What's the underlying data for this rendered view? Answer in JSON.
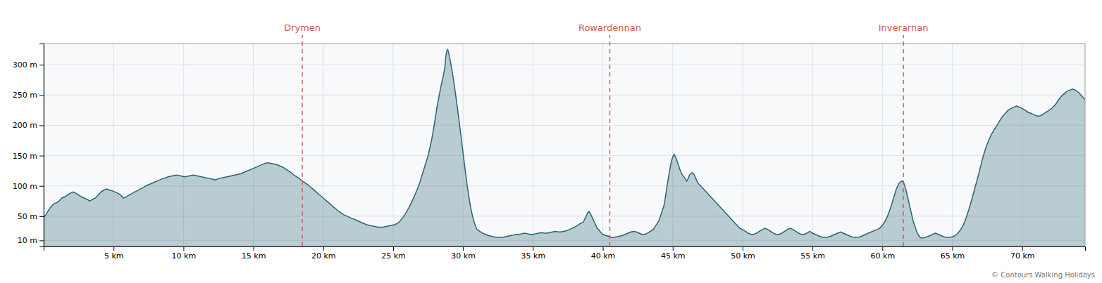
{
  "chart_data": {
    "type": "area",
    "color": "#2b6575",
    "grid": true,
    "xlim": [
      0,
      74.5
    ],
    "xticks": [
      {
        "value": 5,
        "label": "5 km"
      },
      {
        "value": 10,
        "label": "10 km"
      },
      {
        "value": 15,
        "label": "15 km"
      },
      {
        "value": 20,
        "label": "20 km"
      },
      {
        "value": 25,
        "label": "25 km"
      },
      {
        "value": 30,
        "label": "30 km"
      },
      {
        "value": 35,
        "label": "35 km"
      },
      {
        "value": 40,
        "label": "40 km"
      },
      {
        "value": 45,
        "label": "45 km"
      },
      {
        "value": 50,
        "label": "50 km"
      },
      {
        "value": 55,
        "label": "55 km"
      },
      {
        "value": 60,
        "label": "60 km"
      },
      {
        "value": 65,
        "label": "65 km"
      },
      {
        "value": 70,
        "label": "70 km"
      }
    ],
    "ylim": [
      0,
      335
    ],
    "yticks": [
      {
        "value": 10,
        "label": "10 m"
      },
      {
        "value": 50,
        "label": "50 m"
      },
      {
        "value": 100,
        "label": "100 m"
      },
      {
        "value": 150,
        "label": "150 m"
      },
      {
        "value": 200,
        "label": "200 m"
      },
      {
        "value": 250,
        "label": "250 m"
      },
      {
        "value": 300,
        "label": "300 m"
      }
    ],
    "annotations": [
      {
        "text": "Drymen",
        "x": 18.5,
        "color": "#d05555"
      },
      {
        "text": "Rowardennan",
        "x": 40.5,
        "color": "#d05555"
      },
      {
        "text": "Inverarnan",
        "x": 61.5,
        "color": "#d05555"
      },
      {
        "text": "© Contours Walking Holidays"
      }
    ],
    "x": [
      0.0,
      0.15,
      0.3,
      0.5,
      0.7,
      0.9,
      1.1,
      1.3,
      1.5,
      1.7,
      1.9,
      2.1,
      2.3,
      2.5,
      2.7,
      2.9,
      3.1,
      3.3,
      3.5,
      3.7,
      3.9,
      4.1,
      4.3,
      4.5,
      4.7,
      4.9,
      5.1,
      5.3,
      5.5,
      5.7,
      5.9,
      6.1,
      6.3,
      6.5,
      6.7,
      6.9,
      7.1,
      7.3,
      7.5,
      7.7,
      7.9,
      8.1,
      8.3,
      8.5,
      8.7,
      8.9,
      9.1,
      9.3,
      9.5,
      9.7,
      9.9,
      10.1,
      10.3,
      10.5,
      10.7,
      10.9,
      11.1,
      11.3,
      11.5,
      11.7,
      11.9,
      12.1,
      12.3,
      12.5,
      12.7,
      12.9,
      13.1,
      13.3,
      13.5,
      13.7,
      13.9,
      14.1,
      14.3,
      14.5,
      14.7,
      14.9,
      15.1,
      15.3,
      15.5,
      15.7,
      15.9,
      16.1,
      16.3,
      16.5,
      16.7,
      16.9,
      17.1,
      17.3,
      17.5,
      17.7,
      17.9,
      18.1,
      18.3,
      18.5,
      18.7,
      18.9,
      19.1,
      19.3,
      19.5,
      19.7,
      19.9,
      20.1,
      20.3,
      20.5,
      20.7,
      20.9,
      21.1,
      21.3,
      21.5,
      21.7,
      21.9,
      22.1,
      22.3,
      22.5,
      22.7,
      22.9,
      23.1,
      23.3,
      23.5,
      23.7,
      23.9,
      24.1,
      24.3,
      24.5,
      24.7,
      24.9,
      25.1,
      25.3,
      25.5,
      25.7,
      25.9,
      26.1,
      26.3,
      26.5,
      26.7,
      26.9,
      27.1,
      27.3,
      27.5,
      27.6,
      27.7,
      27.8,
      27.9,
      28.0,
      28.1,
      28.2,
      28.3,
      28.4,
      28.5,
      28.6,
      28.7,
      28.75,
      28.8,
      28.85,
      28.9,
      28.95,
      29.0,
      29.1,
      29.2,
      29.3,
      29.4,
      29.5,
      29.6,
      29.7,
      29.8,
      29.9,
      30.0,
      30.1,
      30.2,
      30.3,
      30.4,
      30.5,
      30.6,
      30.7,
      30.8,
      30.9,
      31.0,
      31.2,
      31.4,
      31.6,
      31.8,
      32.0,
      32.2,
      32.4,
      32.6,
      32.8,
      33.0,
      33.2,
      33.4,
      33.6,
      33.8,
      34.0,
      34.2,
      34.4,
      34.6,
      34.8,
      35.0,
      35.2,
      35.4,
      35.6,
      35.8,
      36.0,
      36.2,
      36.4,
      36.6,
      36.8,
      37.0,
      37.2,
      37.4,
      37.6,
      37.8,
      38.0,
      38.2,
      38.4,
      38.6,
      38.7,
      38.8,
      38.9,
      39.0,
      39.1,
      39.2,
      39.3,
      39.4,
      39.5,
      39.6,
      39.7,
      39.8,
      39.9,
      40.0,
      40.2,
      40.4,
      40.5,
      40.6,
      40.8,
      41.0,
      41.2,
      41.4,
      41.6,
      41.8,
      42.0,
      42.2,
      42.4,
      42.6,
      42.8,
      43.0,
      43.2,
      43.4,
      43.6,
      43.8,
      44.0,
      44.2,
      44.4,
      44.5,
      44.6,
      44.7,
      44.8,
      44.9,
      45.0,
      45.1,
      45.2,
      45.3,
      45.4,
      45.5,
      45.6,
      45.7,
      45.8,
      45.9,
      46.0,
      46.1,
      46.2,
      46.3,
      46.4,
      46.5,
      46.6,
      46.7,
      46.8,
      47.0,
      47.2,
      47.4,
      47.6,
      47.8,
      48.0,
      48.2,
      48.4,
      48.6,
      48.8,
      49.0,
      49.2,
      49.4,
      49.6,
      49.8,
      50.0,
      50.2,
      50.4,
      50.6,
      50.8,
      51.0,
      51.2,
      51.4,
      51.6,
      51.8,
      52.0,
      52.2,
      52.4,
      52.6,
      52.8,
      53.0,
      53.2,
      53.4,
      53.6,
      53.8,
      54.0,
      54.2,
      54.4,
      54.6,
      54.8,
      55.0,
      55.2,
      55.4,
      55.6,
      55.8,
      56.0,
      56.2,
      56.4,
      56.6,
      56.8,
      57.0,
      57.2,
      57.4,
      57.6,
      57.8,
      58.0,
      58.2,
      58.4,
      58.6,
      58.8,
      59.0,
      59.2,
      59.4,
      59.6,
      59.8,
      60.0,
      60.2,
      60.4,
      60.6,
      60.8,
      61.0,
      61.2,
      61.4,
      61.5,
      61.6,
      61.7,
      61.8,
      61.9,
      62.0,
      62.1,
      62.2,
      62.3,
      62.4,
      62.5,
      62.6,
      62.7,
      62.8,
      62.9,
      63.0,
      63.2,
      63.4,
      63.6,
      63.8,
      64.0,
      64.2,
      64.4,
      64.6,
      64.8,
      65.0,
      65.2,
      65.4,
      65.6,
      65.8,
      66.0,
      66.2,
      66.4,
      66.6,
      66.8,
      67.0,
      67.2,
      67.4,
      67.6,
      67.8,
      68.0,
      68.2,
      68.4,
      68.6,
      68.8,
      69.0,
      69.2,
      69.4,
      69.6,
      69.8,
      70.0,
      70.2,
      70.4,
      70.6,
      70.8,
      71.0,
      71.2,
      71.4,
      71.6,
      71.8,
      72.0,
      72.2,
      72.4,
      72.6,
      72.8,
      73.0,
      73.2,
      73.4,
      73.6,
      73.8,
      74.0,
      74.2,
      74.4,
      74.5
    ],
    "values": [
      48,
      52,
      58,
      65,
      70,
      72,
      75,
      80,
      82,
      85,
      88,
      90,
      88,
      85,
      82,
      80,
      78,
      75,
      78,
      80,
      85,
      90,
      93,
      95,
      93,
      92,
      90,
      88,
      85,
      80,
      82,
      85,
      87,
      90,
      92,
      95,
      97,
      100,
      102,
      104,
      106,
      108,
      110,
      112,
      113,
      115,
      116,
      117,
      118,
      117,
      116,
      115,
      116,
      117,
      118,
      117,
      116,
      115,
      114,
      113,
      112,
      111,
      110,
      112,
      113,
      114,
      115,
      116,
      117,
      118,
      119,
      120,
      122,
      124,
      126,
      128,
      130,
      132,
      134,
      136,
      138,
      138,
      137,
      136,
      135,
      133,
      131,
      128,
      125,
      122,
      118,
      115,
      112,
      108,
      105,
      102,
      98,
      94,
      90,
      86,
      82,
      78,
      74,
      70,
      66,
      62,
      58,
      55,
      52,
      50,
      48,
      46,
      44,
      42,
      40,
      38,
      36,
      35,
      34,
      33,
      32,
      32,
      32,
      33,
      34,
      35,
      36,
      38,
      42,
      48,
      55,
      63,
      72,
      82,
      93,
      105,
      120,
      135,
      150,
      160,
      170,
      182,
      195,
      210,
      225,
      238,
      250,
      262,
      273,
      283,
      295,
      310,
      318,
      323,
      325,
      322,
      316,
      305,
      292,
      278,
      262,
      245,
      228,
      210,
      192,
      174,
      155,
      136,
      118,
      100,
      85,
      70,
      58,
      48,
      40,
      33,
      28,
      25,
      22,
      20,
      18,
      17,
      16,
      15,
      15,
      15,
      16,
      17,
      18,
      19,
      20,
      20,
      21,
      22,
      21,
      20,
      20,
      21,
      22,
      23,
      22,
      22,
      23,
      24,
      25,
      24,
      24,
      25,
      26,
      28,
      30,
      32,
      35,
      38,
      40,
      45,
      50,
      55,
      58,
      55,
      50,
      45,
      40,
      35,
      30,
      28,
      25,
      22,
      20,
      18,
      17,
      16,
      15,
      15,
      16,
      17,
      18,
      20,
      22,
      24,
      25,
      24,
      22,
      20,
      20,
      22,
      25,
      28,
      35,
      42,
      55,
      70,
      85,
      100,
      115,
      128,
      140,
      148,
      152,
      148,
      142,
      135,
      128,
      122,
      118,
      115,
      112,
      108,
      112,
      118,
      120,
      122,
      120,
      115,
      110,
      105,
      100,
      95,
      90,
      85,
      80,
      75,
      70,
      65,
      60,
      55,
      50,
      45,
      40,
      35,
      30,
      28,
      25,
      22,
      20,
      20,
      22,
      25,
      28,
      30,
      28,
      25,
      22,
      20,
      20,
      22,
      25,
      28,
      30,
      28,
      25,
      22,
      20,
      20,
      22,
      25,
      22,
      20,
      18,
      16,
      15,
      15,
      16,
      18,
      20,
      22,
      24,
      22,
      20,
      18,
      16,
      15,
      15,
      16,
      18,
      20,
      22,
      24,
      26,
      28,
      30,
      35,
      42,
      52,
      65,
      80,
      95,
      105,
      108,
      107,
      100,
      92,
      82,
      72,
      62,
      52,
      42,
      35,
      28,
      22,
      18,
      15,
      14,
      14,
      15,
      16,
      18,
      20,
      22,
      20,
      18,
      16,
      15,
      15,
      16,
      18,
      22,
      28,
      36,
      48,
      62,
      78,
      95,
      112,
      130,
      148,
      163,
      175,
      185,
      193,
      200,
      208,
      215,
      220,
      225,
      228,
      230,
      232,
      230,
      228,
      225,
      222,
      220,
      218,
      216,
      215,
      217,
      220,
      223,
      226,
      230,
      235,
      242,
      248,
      252,
      256,
      258,
      260,
      258,
      255,
      250,
      245,
      242
    ]
  }
}
